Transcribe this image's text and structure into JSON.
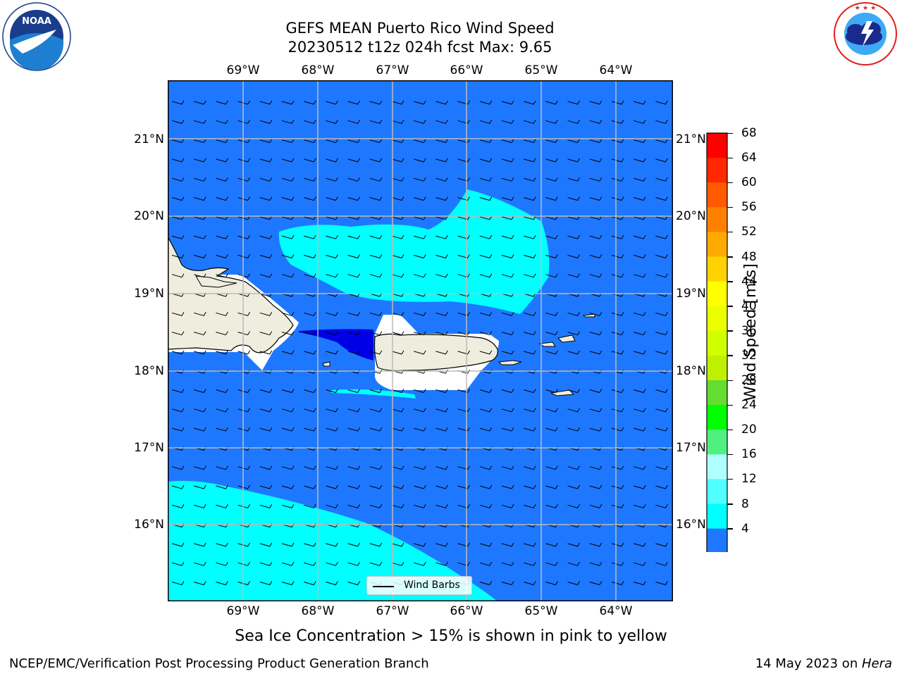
{
  "header": {
    "title_line1": "GEFS MEAN Puerto Rico Wind Speed",
    "title_line2": "20230512 t12z 024h fcst   Max: 9.65"
  },
  "logos": {
    "noaa": {
      "text": "NOAA",
      "ring_text": "NATIONAL OCEANIC AND ATMOSPHERIC ADMINISTRATION · U.S. DEPARTMENT OF COMMERCE"
    },
    "nws": {
      "ring_text": "NATIONAL WEATHER SERVICE"
    }
  },
  "map": {
    "lon_ticks": [
      "69°W",
      "68°W",
      "67°W",
      "66°W",
      "65°W",
      "64°W"
    ],
    "lat_ticks": [
      "21°N",
      "20°N",
      "19°N",
      "18°N",
      "17°N",
      "16°N"
    ],
    "legend_label": "Wind Barbs",
    "colors": {
      "background_field": "#1e78ff",
      "cyan_field": "#00ffff",
      "dark_field": "#0000e6",
      "land": "#efedde",
      "grid": "#bbbbbb"
    }
  },
  "colorbar": {
    "label": "Wind Speed [m/s]",
    "ticks": [
      "68",
      "64",
      "60",
      "56",
      "52",
      "48",
      "44",
      "40",
      "36",
      "32",
      "28",
      "24",
      "20",
      "16",
      "12",
      "8",
      "4"
    ],
    "colors_top_to_bottom": [
      "#ff0000",
      "#ff2800",
      "#ff5a00",
      "#ff8000",
      "#ffaa00",
      "#ffd200",
      "#ffff00",
      "#ebff00",
      "#d2ff00",
      "#bef000",
      "#64dc32",
      "#00ff00",
      "#50f080",
      "#afffff",
      "#50ffff",
      "#00ffff",
      "#1e78ff"
    ],
    "under_color": "#0000ff"
  },
  "notes": {
    "sea_ice": "Sea Ice Concentration > 15% is shown in pink to yellow"
  },
  "footer": {
    "left": "NCEP/EMC/Verification Post Processing Product Generation Branch",
    "right_date": "14 May 2023 on ",
    "right_host": "Hera"
  }
}
